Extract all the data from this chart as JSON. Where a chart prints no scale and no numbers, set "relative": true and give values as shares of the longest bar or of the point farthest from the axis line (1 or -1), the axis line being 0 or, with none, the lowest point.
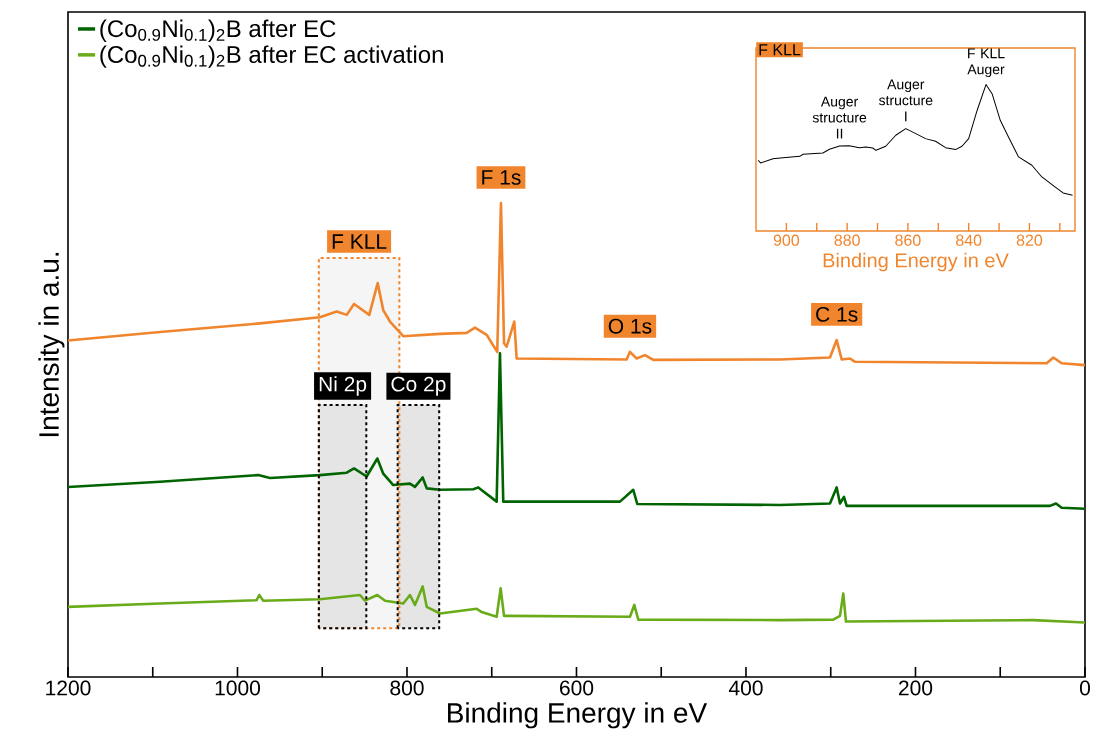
{
  "chart_data": [
    {
      "type": "line",
      "xlabel": "Binding Energy in eV",
      "ylabel": "Intensity in a.u.",
      "relative": true,
      "xlim": [
        1200,
        0
      ],
      "xticks": [
        1200,
        {
          "value": 1100,
          "label": null
        },
        1000,
        {
          "value": 900,
          "label": null
        },
        800,
        {
          "value": 700,
          "label": null
        },
        600,
        {
          "value": 500,
          "label": null
        },
        400,
        {
          "value": 300,
          "label": null
        },
        200,
        {
          "value": 100,
          "label": null
        },
        0
      ],
      "legend": "top left",
      "series": [
        {
          "color": "#f0852d",
          "x": [
            1200,
            1091.4,
            973.5,
            902.7,
            882.9,
            871.1,
            862.5,
            844.5,
            834.6,
            828.0,
            820.1,
            804.4,
            761.1,
            729.6,
            719.8,
            706.0,
            693.5,
            689.1,
            685.5,
            682.4,
            673.4,
            670.6,
            540.8,
            536.9,
            529.0,
            519.2,
            509.4,
            359.9,
            300.9,
            293.0,
            287.1,
            277.3,
            271.4,
            45.2,
            37.3,
            27.5,
            0
          ],
          "values": [
            0.71,
            0.728,
            0.746,
            0.759,
            0.771,
            0.764,
            0.787,
            0.764,
            0.831,
            0.774,
            0.75,
            0.719,
            0.724,
            0.726,
            0.737,
            0.722,
            0.686,
            1.0,
            0.704,
            0.697,
            0.75,
            0.672,
            0.67,
            0.686,
            0.672,
            0.679,
            0.669,
            0.67,
            0.674,
            0.711,
            0.67,
            0.672,
            0.665,
            0.662,
            0.674,
            0.662,
            0.658
          ]
        },
        {
          "name": "(Co$_{0.9}$Ni$_{0.1}$)$_{2}$B after EC",
          "color": "#006400",
          "x": [
            1200,
            1091.4,
            975.5,
            961.7,
            902.7,
            871.1,
            862.5,
            847.6,
            835.0,
            828.0,
            816.2,
            796.5,
            790.6,
            781.5,
            776.7,
            761.1,
            721.8,
            715.9,
            694.2,
            690.3,
            686.4,
            548.7,
            533.0,
            528.3,
            359.9,
            300.9,
            293.0,
            289.1,
            284.4,
            281.2,
            41.3,
            34.2,
            27.5,
            0
          ],
          "values": [
            0.401,
            0.412,
            0.426,
            0.42,
            0.426,
            0.431,
            0.44,
            0.423,
            0.461,
            0.429,
            0.405,
            0.408,
            0.401,
            0.421,
            0.398,
            0.395,
            0.396,
            0.4,
            0.37,
            0.683,
            0.37,
            0.37,
            0.395,
            0.365,
            0.363,
            0.366,
            0.4,
            0.366,
            0.38,
            0.361,
            0.361,
            0.366,
            0.357,
            0.355
          ]
        },
        {
          "name": "(Co$_{0.9}$Ni$_{0.1}$)$_{2}$B after EC activation",
          "color": "#6aab1a",
          "x": [
            1200,
            1091.4,
            977.4,
            974.3,
            969.6,
            902.7,
            855.5,
            849.6,
            835.0,
            825.9,
            804.4,
            796.5,
            790.6,
            781.5,
            776.7,
            761.1,
            717.8,
            711.9,
            694.2,
            689.5,
            685.5,
            536.9,
            531.8,
            527.1,
            359.9,
            297.0,
            289.1,
            285.2,
            282.0,
            61.0,
            0
          ],
          "values": [
            0.148,
            0.155,
            0.162,
            0.173,
            0.161,
            0.164,
            0.173,
            0.161,
            0.173,
            0.161,
            0.155,
            0.173,
            0.152,
            0.191,
            0.148,
            0.134,
            0.144,
            0.137,
            0.127,
            0.187,
            0.129,
            0.127,
            0.152,
            0.121,
            0.12,
            0.121,
            0.129,
            0.176,
            0.117,
            0.12,
            0.115
          ]
        }
      ],
      "bands": [
        {
          "axis": "x",
          "from": 904,
          "to": 809,
          "label": "F KLL"
        },
        {
          "axis": "x",
          "from": 904,
          "to": 848,
          "label": "Ni 2p"
        },
        {
          "axis": "x",
          "from": 811,
          "to": 762,
          "label": "Co 2p"
        }
      ],
      "annotations": [
        {
          "text": "F 1s",
          "x": 689.1,
          "y": 1.0
        },
        {
          "text": "O 1s",
          "x": 536.9,
          "y": 0.686
        },
        {
          "text": "C 1s",
          "x": 293.0,
          "y": 0.711
        }
      ]
    },
    {
      "type": "line",
      "title": "F KLL",
      "xlabel": "Binding Energy in eV",
      "relative": true,
      "xlim": [
        910,
        805
      ],
      "xticks": [
        900,
        {
          "value": 890,
          "label": null
        },
        880,
        {
          "value": 870,
          "label": null
        },
        860,
        {
          "value": 850,
          "label": null
        },
        840,
        {
          "value": 830,
          "label": null
        },
        820,
        {
          "value": 810,
          "label": null
        }
      ],
      "series": [
        {
          "color": "#000000",
          "x": [
            909.3,
            908.5,
            904.4,
            901.1,
            895.6,
            894.5,
            888.0,
            885.8,
            882.5,
            879.3,
            876.0,
            873.8,
            871.6,
            870.5,
            867.3,
            864.0,
            860.7,
            857.4,
            854.2,
            850.9,
            847.6,
            844.3,
            842.2,
            840.0,
            837.2,
            834.3,
            832.3,
            829.6,
            826.9,
            823.6,
            819.2,
            815.9,
            811.6,
            808.9,
            805.8
          ],
          "values": [
            0.483,
            0.465,
            0.494,
            0.501,
            0.51,
            0.524,
            0.533,
            0.558,
            0.581,
            0.583,
            0.569,
            0.574,
            0.567,
            0.551,
            0.579,
            0.654,
            0.699,
            0.665,
            0.631,
            0.613,
            0.569,
            0.556,
            0.579,
            0.631,
            0.825,
            1.0,
            0.938,
            0.756,
            0.642,
            0.506,
            0.449,
            0.369,
            0.301,
            0.26,
            0.244
          ]
        }
      ],
      "annotations": [
        {
          "text": "Auger structure II",
          "x": 882.5,
          "y": 0.581
        },
        {
          "text": "Auger structure I",
          "x": 860.7,
          "y": 0.699
        },
        {
          "text": "F KLL Auger",
          "x": 834.3,
          "y": 1.0
        }
      ]
    }
  ]
}
